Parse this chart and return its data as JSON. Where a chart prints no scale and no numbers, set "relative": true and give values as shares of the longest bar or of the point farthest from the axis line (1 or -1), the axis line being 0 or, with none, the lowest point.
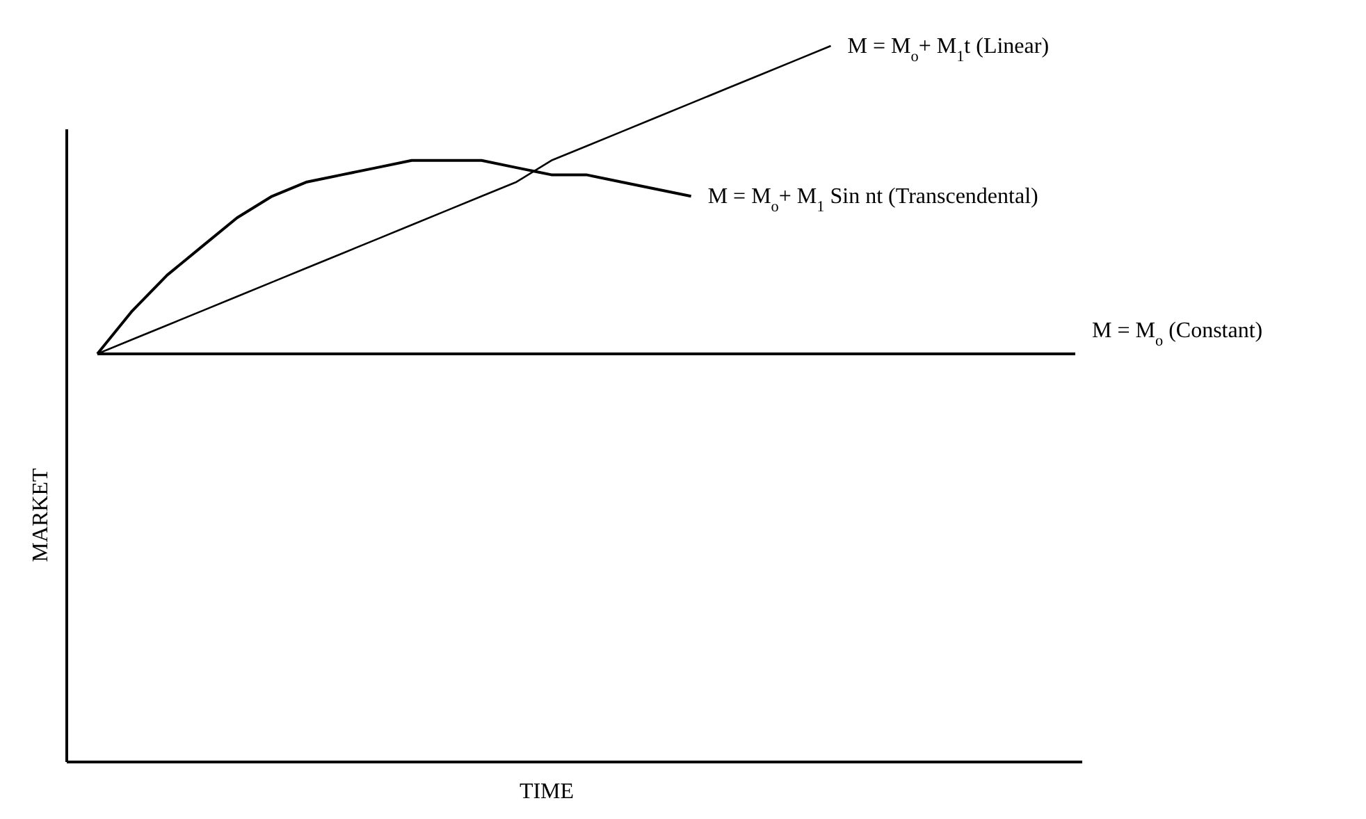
{
  "chart_data": {
    "type": "line",
    "relative": true,
    "xlabel": "TIME",
    "ylabel": "MARKET",
    "marker": "none",
    "line_style": "solid",
    "categories": [
      null,
      null,
      null,
      null,
      null,
      null,
      null,
      null,
      null,
      null,
      null,
      null,
      null,
      null,
      null,
      null,
      null,
      null,
      null,
      null,
      null,
      null,
      null,
      null,
      null,
      null,
      null,
      null,
      null
    ],
    "series": [
      {
        "name": "M = M$_{o}$+ M$_{1}$t (Linear)",
        "color": "#000000",
        "values": [
          0.57,
          0.59,
          0.61,
          0.63,
          0.65,
          0.67,
          0.69,
          0.71,
          0.73,
          0.75,
          0.77,
          0.79,
          0.81,
          0.84,
          0.86,
          0.88,
          0.9,
          0.92,
          0.94,
          0.96,
          0.98,
          1.0,
          null,
          null,
          null,
          null,
          null,
          null,
          null
        ]
      },
      {
        "name": "M = M$_{o}$+ M$_{1}$ Sin nt (Transcendental)",
        "color": "#000000",
        "values": [
          0.57,
          0.63,
          0.68,
          0.72,
          0.76,
          0.79,
          0.81,
          0.82,
          0.83,
          0.84,
          0.84,
          0.84,
          0.83,
          0.82,
          0.82,
          0.81,
          0.8,
          0.79,
          null,
          null,
          null,
          null,
          null,
          null,
          null,
          null,
          null,
          null,
          null
        ]
      },
      {
        "name": "M = M$_{o}$ (Constant)",
        "color": "#000000",
        "values": [
          0.57,
          0.57,
          0.57,
          0.57,
          0.57,
          0.57,
          0.57,
          0.57,
          0.57,
          0.57,
          0.57,
          0.57,
          0.57,
          0.57,
          0.57,
          0.57,
          0.57,
          0.57,
          0.57,
          0.57,
          0.57,
          0.57,
          0.57,
          0.57,
          0.57,
          0.57,
          0.57,
          0.57,
          0.57
        ]
      }
    ]
  }
}
